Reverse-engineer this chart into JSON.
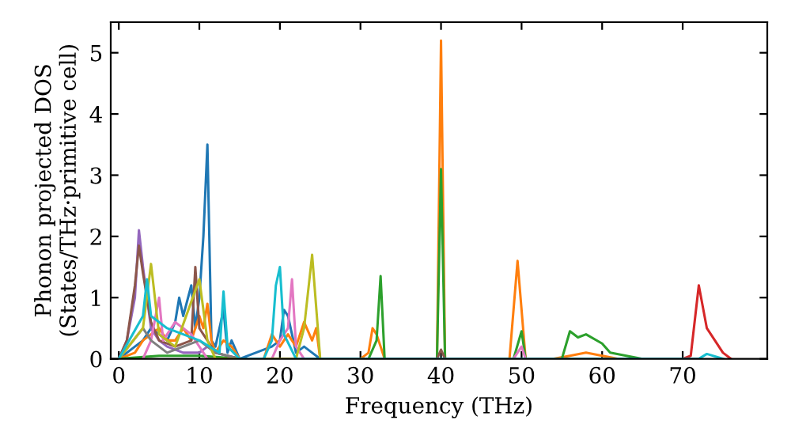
{
  "chart_data": {
    "type": "line",
    "xlabel": "Frequency (THz)",
    "ylabel": "Phonon projected DOS\n(States/THz·primitive cell)",
    "xlim": [
      -1,
      80.5
    ],
    "ylim": [
      0,
      5.5
    ],
    "xticks": [
      0,
      10,
      20,
      30,
      40,
      50,
      60,
      70
    ],
    "yticks": [
      0,
      1,
      2,
      3,
      4,
      5
    ],
    "grid": false,
    "legend": false,
    "marker": "none",
    "line_style": "solid",
    "series": [
      {
        "color": "#1f77b4",
        "x": [
          0,
          3,
          4,
          5,
          6,
          7,
          7.5,
          8,
          9,
          9.5,
          10,
          10.5,
          11,
          11.5,
          12,
          13,
          13.5,
          14,
          15,
          19,
          20,
          20.5,
          21,
          22,
          23,
          24,
          25
        ],
        "values": [
          0,
          0.3,
          0.5,
          0.4,
          0.3,
          0.6,
          1.0,
          0.7,
          1.2,
          0.5,
          1.0,
          2.0,
          3.5,
          0.3,
          0.2,
          0.8,
          0.1,
          0.3,
          0,
          0.2,
          0.3,
          0.8,
          0.7,
          0.1,
          0.2,
          0.1,
          0
        ]
      },
      {
        "color": "#ff7f0e",
        "x": [
          0,
          2,
          3,
          4,
          5,
          6,
          7,
          8,
          9,
          10,
          10.5,
          11,
          11.5,
          12,
          13,
          14,
          15,
          18,
          19,
          20,
          21,
          22,
          23,
          24,
          24.5,
          25,
          30,
          31,
          31.5,
          32,
          33,
          39.5,
          40,
          40.5,
          48.5,
          49.5,
          50.5,
          54,
          56,
          58,
          60,
          62
        ],
        "values": [
          0,
          0.1,
          0.3,
          0.4,
          0.5,
          0.3,
          0.3,
          0.5,
          0.3,
          0.7,
          0.5,
          0.9,
          0.3,
          0.1,
          0.3,
          0.2,
          0,
          0,
          0.4,
          0.2,
          0.4,
          0.2,
          0.6,
          0.3,
          0.5,
          0,
          0,
          0.1,
          0.5,
          0.4,
          0,
          0,
          5.2,
          0,
          0,
          1.6,
          0,
          0,
          0.05,
          0.1,
          0.05,
          0
        ]
      },
      {
        "color": "#2ca02c",
        "x": [
          0,
          5,
          10,
          15,
          31,
          32,
          32.5,
          33,
          39.5,
          40,
          40.5,
          49,
          50,
          50.5,
          55,
          56,
          57,
          58,
          60,
          61,
          63,
          65
        ],
        "values": [
          0,
          0.05,
          0.05,
          0,
          0,
          0.3,
          1.35,
          0,
          0,
          3.1,
          0,
          0,
          0.45,
          0,
          0,
          0.45,
          0.35,
          0.4,
          0.25,
          0.1,
          0.05,
          0
        ]
      },
      {
        "color": "#d62728",
        "x": [
          70,
          71,
          72,
          73,
          74,
          75,
          76
        ],
        "values": [
          0,
          0.05,
          1.2,
          0.5,
          0.3,
          0.1,
          0
        ]
      },
      {
        "color": "#9467bd",
        "x": [
          0,
          1,
          2,
          2.5,
          3,
          4,
          5,
          6,
          8,
          10,
          11,
          12,
          15
        ],
        "values": [
          0,
          0.3,
          1.0,
          2.1,
          1.5,
          0.5,
          0.3,
          0.2,
          0.1,
          0.1,
          0.2,
          0.1,
          0
        ]
      },
      {
        "color": "#8c564b",
        "x": [
          0,
          1,
          2,
          2.5,
          3,
          4,
          5,
          7,
          9,
          9.5,
          10,
          12,
          15,
          39.5,
          40,
          40.5
        ],
        "values": [
          0,
          0.3,
          1.2,
          1.85,
          1.4,
          0.6,
          0.3,
          0.2,
          0.3,
          1.5,
          0.5,
          0.1,
          0,
          0,
          0.15,
          0
        ]
      },
      {
        "color": "#e377c2",
        "x": [
          3,
          4,
          5,
          5.5,
          7,
          9,
          11,
          19,
          20,
          21,
          21.5,
          22,
          23,
          49,
          50,
          50.5
        ],
        "values": [
          0,
          0.3,
          1.0,
          0.3,
          0.6,
          0.4,
          0,
          0,
          0.3,
          0.5,
          1.3,
          0.2,
          0,
          0,
          0.2,
          0
        ]
      },
      {
        "color": "#7f7f7f",
        "x": [
          0,
          3,
          4,
          6,
          10,
          12,
          15
        ],
        "values": [
          0,
          0.5,
          0.3,
          0.1,
          0.3,
          0.1,
          0
        ]
      },
      {
        "color": "#bcbd22",
        "x": [
          0,
          3,
          4,
          5,
          7,
          10,
          11,
          12,
          22,
          23,
          24,
          25
        ],
        "values": [
          0,
          0.5,
          1.55,
          0.4,
          0.2,
          1.3,
          0.3,
          0,
          0,
          0.5,
          1.7,
          0
        ]
      },
      {
        "color": "#17becf",
        "x": [
          0,
          3,
          3.5,
          4,
          6,
          10,
          12.5,
          13,
          13.5,
          15,
          18,
          19,
          19.5,
          20,
          20.5,
          22,
          72,
          73,
          75
        ],
        "values": [
          0,
          0.7,
          1.3,
          0.7,
          0.5,
          0.3,
          0.1,
          1.1,
          0.2,
          0,
          0,
          0.3,
          1.2,
          1.5,
          0.4,
          0,
          0,
          0.08,
          0
        ]
      }
    ]
  }
}
